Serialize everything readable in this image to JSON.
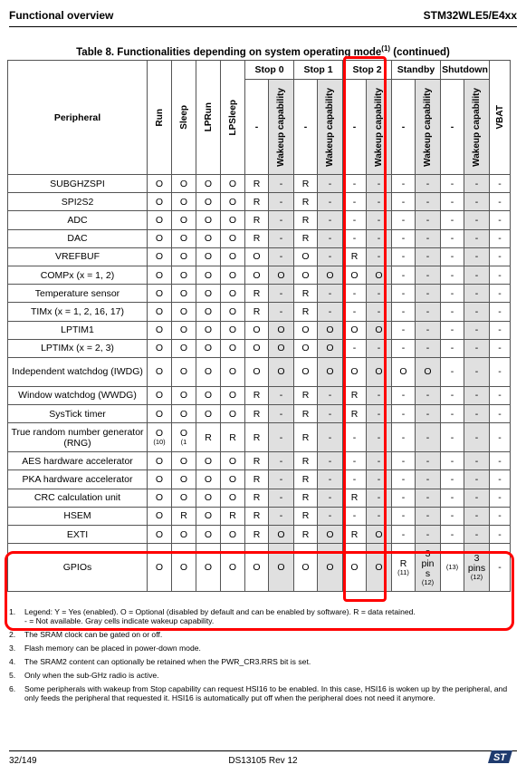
{
  "header": {
    "left": "Functional overview",
    "right": "STM32WLE5/E4xx"
  },
  "caption": {
    "text": "Table 8. Functionalities depending on system operating mode",
    "sup": "(1)",
    "suffix": " (continued)"
  },
  "columns": {
    "peripheral": "Peripheral",
    "run": "Run",
    "sleep": "Sleep",
    "lprun": "LPRun",
    "lpsleep": "LPSleep",
    "stop0": "Stop 0",
    "stop1": "Stop 1",
    "stop2": "Stop 2",
    "standby": "Standby",
    "shutdown": "Shutdown",
    "dash": "-",
    "wakeup": "Wakeup capability",
    "vbat": "VBAT"
  },
  "rows": [
    {
      "name": "SUBGHZSPI",
      "c": [
        "O",
        "O",
        "O",
        "O",
        "R",
        "-",
        "R",
        "-",
        "-",
        "-",
        "-",
        "-",
        "-",
        "-",
        "-"
      ]
    },
    {
      "name": "SPI2S2",
      "c": [
        "O",
        "O",
        "O",
        "O",
        "R",
        "-",
        "R",
        "-",
        "-",
        "-",
        "-",
        "-",
        "-",
        "-",
        "-"
      ]
    },
    {
      "name": "ADC",
      "c": [
        "O",
        "O",
        "O",
        "O",
        "R",
        "-",
        "R",
        "-",
        "-",
        "-",
        "-",
        "-",
        "-",
        "-",
        "-"
      ]
    },
    {
      "name": "DAC",
      "c": [
        "O",
        "O",
        "O",
        "O",
        "R",
        "-",
        "R",
        "-",
        "-",
        "-",
        "-",
        "-",
        "-",
        "-",
        "-"
      ]
    },
    {
      "name": "VREFBUF",
      "c": [
        "O",
        "O",
        "O",
        "O",
        "O",
        "-",
        "O",
        "-",
        "R",
        "-",
        "-",
        "-",
        "-",
        "-",
        "-"
      ]
    },
    {
      "name": "COMPx (x = 1, 2)",
      "c": [
        "O",
        "O",
        "O",
        "O",
        "O",
        "O",
        "O",
        "O",
        "O",
        "O",
        "-",
        "-",
        "-",
        "-",
        "-"
      ]
    },
    {
      "name": "Temperature sensor",
      "c": [
        "O",
        "O",
        "O",
        "O",
        "R",
        "-",
        "R",
        "-",
        "-",
        "-",
        "-",
        "-",
        "-",
        "-",
        "-"
      ]
    },
    {
      "name": "TIMx (x = 1, 2, 16, 17)",
      "c": [
        "O",
        "O",
        "O",
        "O",
        "R",
        "-",
        "R",
        "-",
        "-",
        "-",
        "-",
        "-",
        "-",
        "-",
        "-"
      ]
    },
    {
      "name": "LPTIM1",
      "c": [
        "O",
        "O",
        "O",
        "O",
        "O",
        "O",
        "O",
        "O",
        "O",
        "O",
        "-",
        "-",
        "-",
        "-",
        "-"
      ]
    },
    {
      "name": "LPTIMx (x = 2, 3)",
      "c": [
        "O",
        "O",
        "O",
        "O",
        "O",
        "O",
        "O",
        "O",
        "-",
        "-",
        "-",
        "-",
        "-",
        "-",
        "-"
      ]
    },
    {
      "name": "Independent watchdog (IWDG)",
      "c": [
        "O",
        "O",
        "O",
        "O",
        "O",
        "O",
        "O",
        "O",
        "O",
        "O",
        "O",
        "O",
        "-",
        "-",
        "-"
      ]
    },
    {
      "name": "Window watchdog (WWDG)",
      "c": [
        "O",
        "O",
        "O",
        "O",
        "R",
        "-",
        "R",
        "-",
        "R",
        "-",
        "-",
        "-",
        "-",
        "-",
        "-"
      ]
    },
    {
      "name": "SysTick timer",
      "c": [
        "O",
        "O",
        "O",
        "O",
        "R",
        "-",
        "R",
        "-",
        "R",
        "-",
        "-",
        "-",
        "-",
        "-",
        "-"
      ]
    },
    {
      "name": "True random number generator (RNG)",
      "c": [
        "O",
        "O",
        "R",
        "R",
        "R",
        "-",
        "R",
        "-",
        "-",
        "-",
        "-",
        "-",
        "-",
        "-",
        "-"
      ],
      "notes": {
        "0": "(10)",
        "1": "(1"
      }
    },
    {
      "name": "AES hardware accelerator",
      "c": [
        "O",
        "O",
        "O",
        "O",
        "R",
        "-",
        "R",
        "-",
        "-",
        "-",
        "-",
        "-",
        "-",
        "-",
        "-"
      ]
    },
    {
      "name": "PKA hardware accelerator",
      "c": [
        "O",
        "O",
        "O",
        "O",
        "R",
        "-",
        "R",
        "-",
        "-",
        "-",
        "-",
        "-",
        "-",
        "-",
        "-"
      ]
    },
    {
      "name": "CRC calculation unit",
      "c": [
        "O",
        "O",
        "O",
        "O",
        "R",
        "-",
        "R",
        "-",
        "R",
        "-",
        "-",
        "-",
        "-",
        "-",
        "-"
      ]
    },
    {
      "name": "HSEM",
      "c": [
        "O",
        "R",
        "O",
        "R",
        "R",
        "-",
        "R",
        "-",
        "-",
        "-",
        "-",
        "-",
        "-",
        "-",
        "-"
      ]
    },
    {
      "name": "EXTI",
      "c": [
        "O",
        "O",
        "O",
        "O",
        "R",
        "O",
        "R",
        "O",
        "R",
        "O",
        "-",
        "-",
        "-",
        "-",
        "-"
      ]
    }
  ],
  "gpio": {
    "name": "GPIOs",
    "c": [
      "O",
      "O",
      "O",
      "O",
      "O",
      "O",
      "O",
      "O",
      "O",
      "O"
    ],
    "standby": "R",
    "standby_note": "(11)",
    "standby_wk_a": "3",
    "standby_wk_b": "pin",
    "standby_wk_c": "s",
    "standby_wk_note": "(12)",
    "shutdown": "(13)",
    "shutdown_wk_a": "3",
    "shutdown_wk_b": "pins",
    "shutdown_wk_note": "(12)",
    "vbat": "-"
  },
  "notes": [
    {
      "n": "1.",
      "t": "Legend: Y = Yes (enabled). O = Optional (disabled by default and can be enabled by software). R = data retained.",
      "t2": "- = Not available. Gray cells indicate wakeup capability."
    },
    {
      "n": "2.",
      "t": "The SRAM clock can be gated on or off."
    },
    {
      "n": "3.",
      "t": "Flash memory can be placed in power-down mode."
    },
    {
      "n": "4.",
      "t": "The SRAM2 content can optionally be retained when the PWR_CR3.RRS bit is set."
    },
    {
      "n": "5.",
      "t": "Only when the sub-GHz radio is active."
    },
    {
      "n": "6.",
      "t": "Some peripherals with wakeup from Stop capability can request HSI16 to be enabled. In this case, HSI16 is woken up by the peripheral, and only feeds the peripheral that requested it. HSI16 is automatically put off when the peripheral does not need it anymore."
    }
  ],
  "footer": {
    "page": "32/149",
    "doc": "DS13105 Rev 12",
    "logo": "ST"
  }
}
